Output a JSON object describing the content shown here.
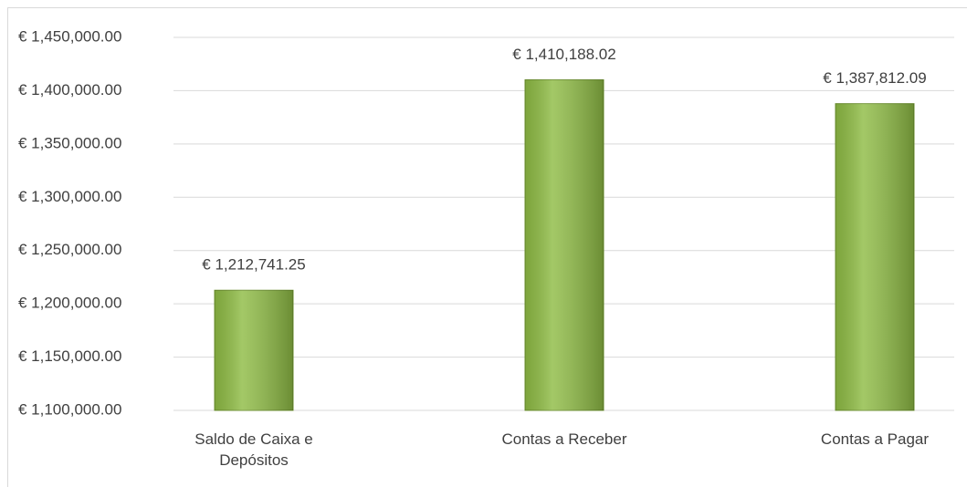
{
  "chart_data": {
    "type": "bar",
    "categories": [
      "Saldo de Caixa e Depósitos",
      "Contas a Receber",
      "Contas a Pagar"
    ],
    "values": [
      1212741.25,
      1410188.02,
      1387812.09
    ],
    "value_labels": [
      "€ 1,212,741.25",
      "€ 1,410,188.02",
      "€ 1,387,812.09"
    ],
    "color": "#8fbc45",
    "ylim": [
      1100000,
      1450000
    ],
    "yticks": [
      {
        "value": 1100000,
        "label": "€ 1,100,000.00"
      },
      {
        "value": 1150000,
        "label": "€ 1,150,000.00"
      },
      {
        "value": 1200000,
        "label": "€ 1,200,000.00"
      },
      {
        "value": 1250000,
        "label": "€ 1,250,000.00"
      },
      {
        "value": 1300000,
        "label": "€ 1,300,000.00"
      },
      {
        "value": 1350000,
        "label": "€ 1,350,000.00"
      },
      {
        "value": 1400000,
        "label": "€ 1,400,000.00"
      },
      {
        "value": 1450000,
        "label": "€ 1,450,000.00"
      }
    ],
    "grid": true
  }
}
